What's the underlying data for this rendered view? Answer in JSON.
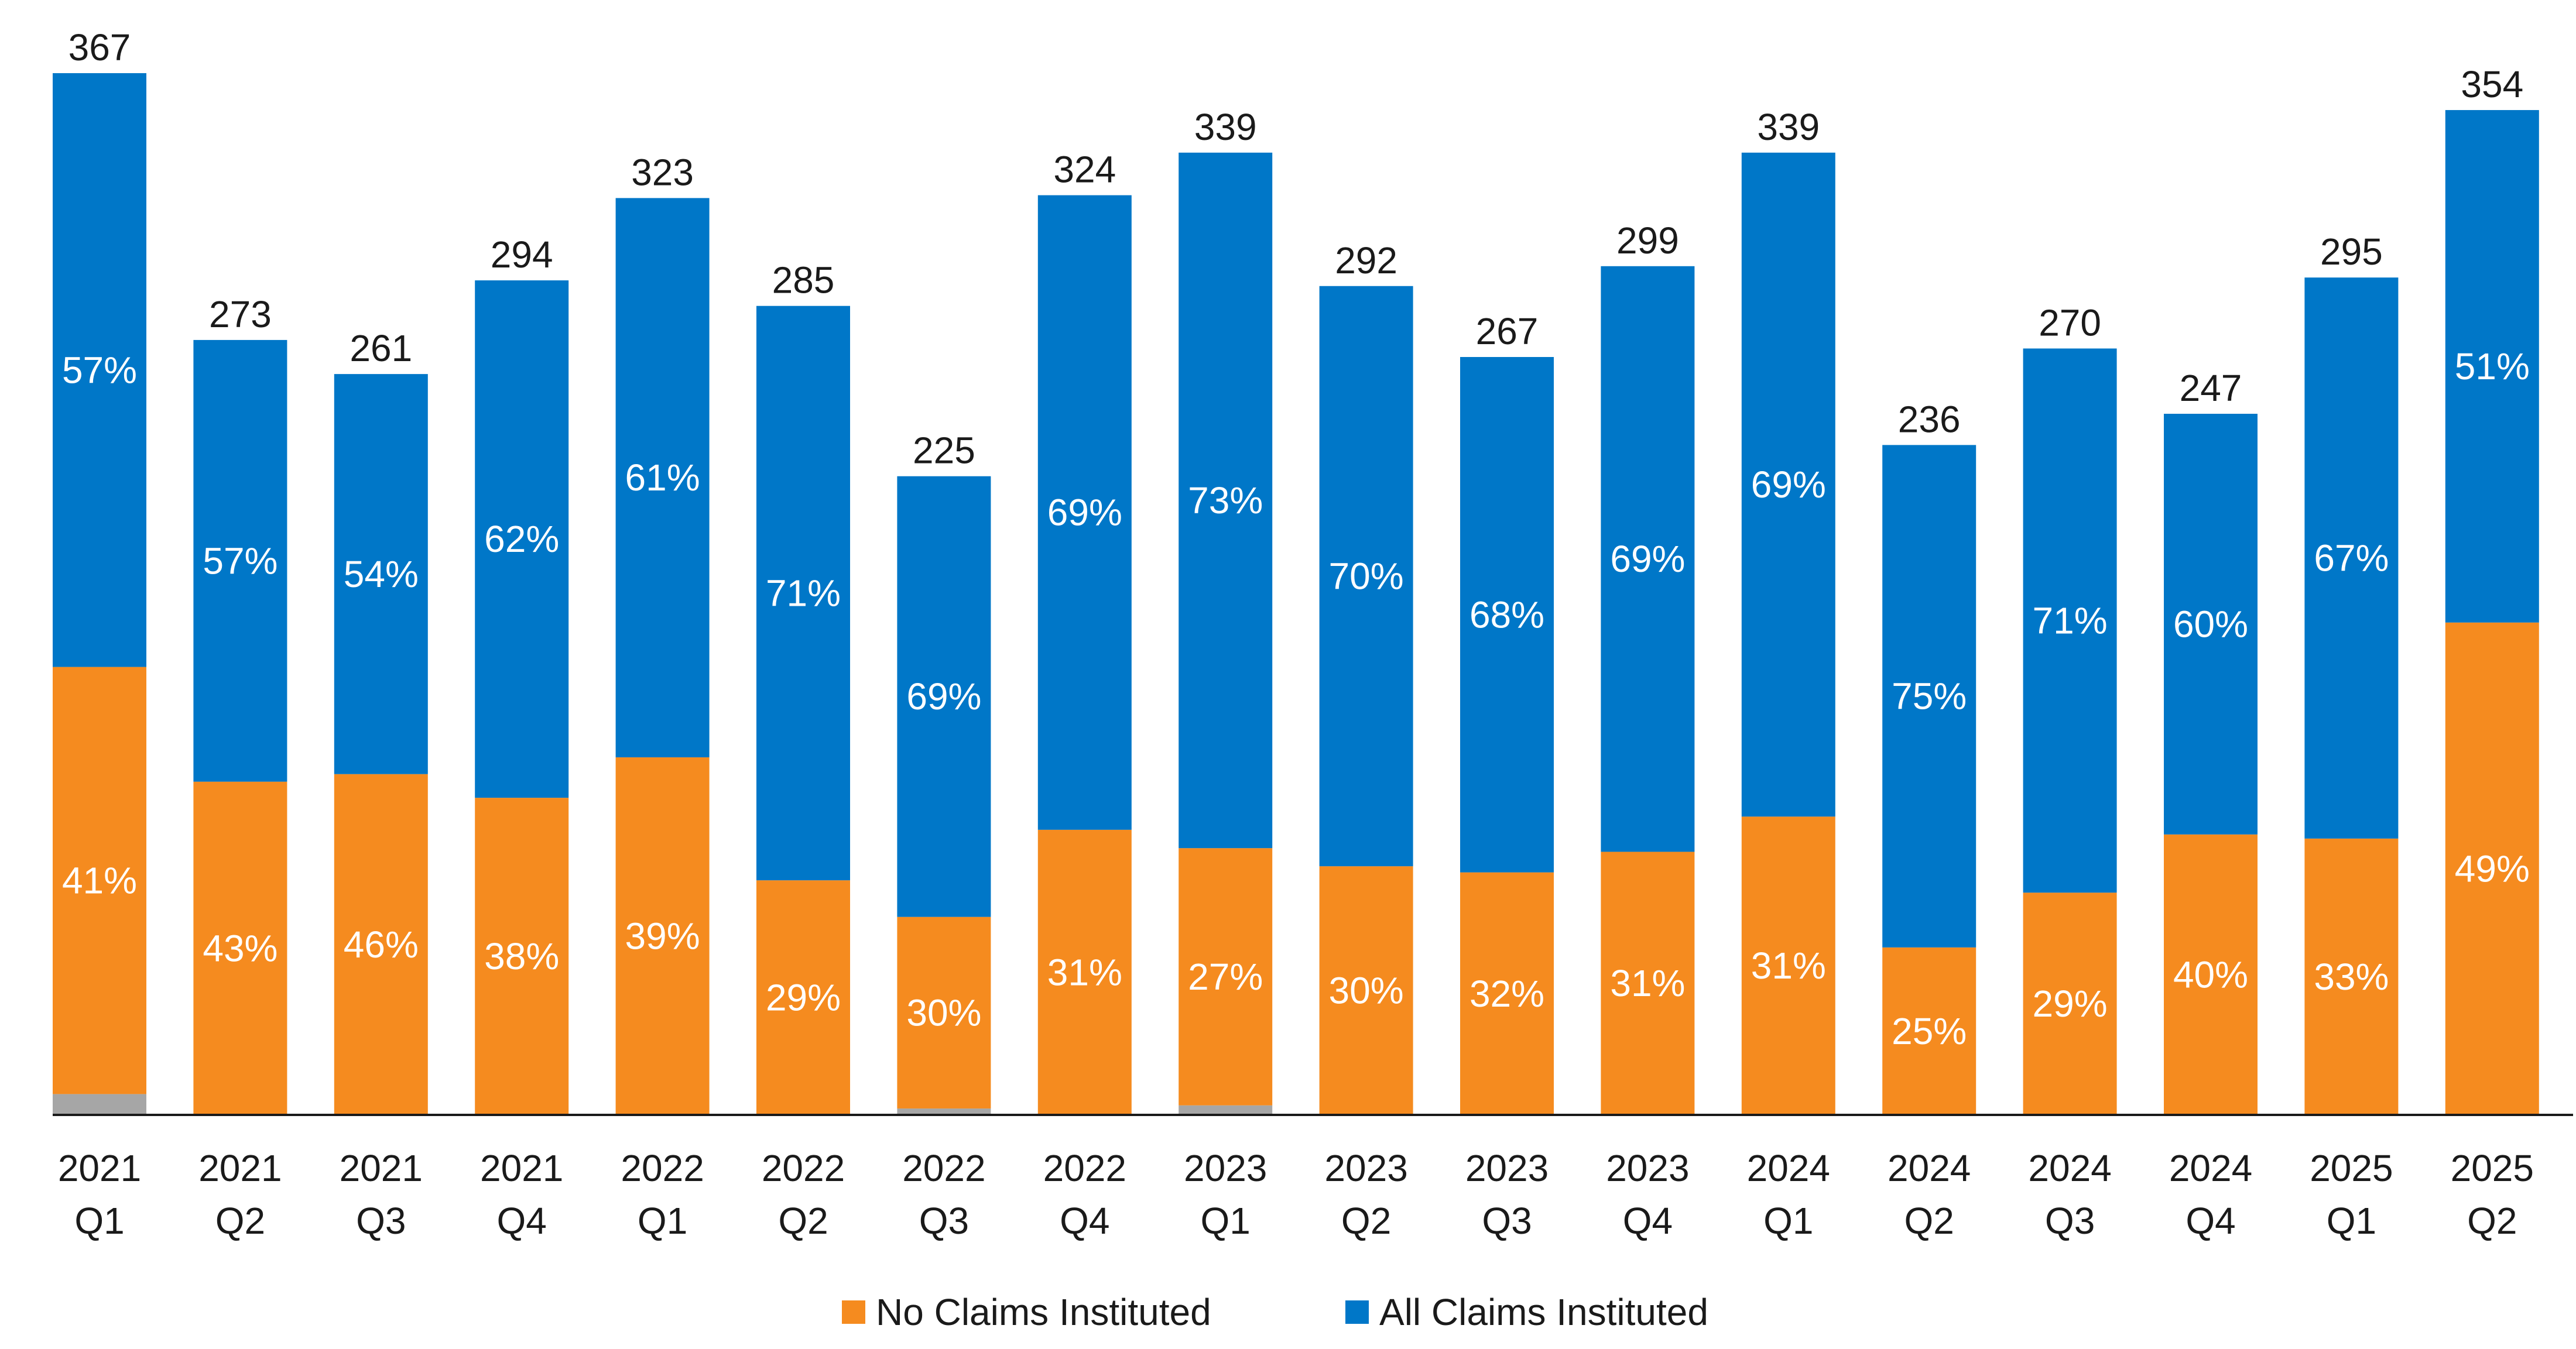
{
  "chart_data": {
    "type": "bar",
    "stacked": true,
    "title": "",
    "xlabel": "",
    "ylabel": "",
    "ylim": [
      0,
      367
    ],
    "grid": false,
    "legend_position": "bottom-center",
    "categories": [
      [
        "2021",
        "Q1"
      ],
      [
        "2021",
        "Q2"
      ],
      [
        "2021",
        "Q3"
      ],
      [
        "2021",
        "Q4"
      ],
      [
        "2022",
        "Q1"
      ],
      [
        "2022",
        "Q2"
      ],
      [
        "2022",
        "Q3"
      ],
      [
        "2022",
        "Q4"
      ],
      [
        "2023",
        "Q1"
      ],
      [
        "2023",
        "Q2"
      ],
      [
        "2023",
        "Q3"
      ],
      [
        "2023",
        "Q4"
      ],
      [
        "2024",
        "Q1"
      ],
      [
        "2024",
        "Q2"
      ],
      [
        "2024",
        "Q3"
      ],
      [
        "2024",
        "Q4"
      ],
      [
        "2025",
        "Q1"
      ],
      [
        "2025",
        "Q2"
      ]
    ],
    "totals": [
      367,
      273,
      261,
      294,
      323,
      285,
      225,
      324,
      339,
      292,
      267,
      299,
      339,
      236,
      270,
      247,
      295,
      354
    ],
    "series": [
      {
        "name": "No Claims Instituted",
        "color": "#f58b1f",
        "percent": [
          41,
          43,
          46,
          38,
          39,
          29,
          30,
          31,
          27,
          30,
          32,
          31,
          31,
          25,
          29,
          40,
          33,
          49
        ],
        "labels": [
          "41%",
          "43%",
          "46%",
          "38%",
          "39%",
          "29%",
          "30%",
          "31%",
          "27%",
          "30%",
          "32%",
          "31%",
          "31%",
          "25%",
          "29%",
          "40%",
          "33%",
          "49%"
        ]
      },
      {
        "name": "All Claims Instituted",
        "color": "#0077c8",
        "percent": [
          57,
          57,
          54,
          62,
          61,
          71,
          69,
          69,
          73,
          70,
          68,
          69,
          69,
          75,
          71,
          60,
          67,
          51
        ],
        "labels": [
          "57%",
          "57%",
          "54%",
          "62%",
          "61%",
          "71%",
          "69%",
          "69%",
          "73%",
          "70%",
          "68%",
          "69%",
          "69%",
          "75%",
          "71%",
          "60%",
          "67%",
          "51%"
        ]
      }
    ],
    "residual": {
      "color": "#a6a6a6",
      "percent": [
        2,
        0,
        0,
        0,
        0,
        0,
        1,
        0,
        1,
        0,
        0,
        0,
        0,
        0,
        0,
        0,
        0,
        0
      ]
    }
  },
  "colors": {
    "axis": "#1a1a1a",
    "total_text": "#1a1a1a",
    "segment_text": "#ffffff"
  }
}
